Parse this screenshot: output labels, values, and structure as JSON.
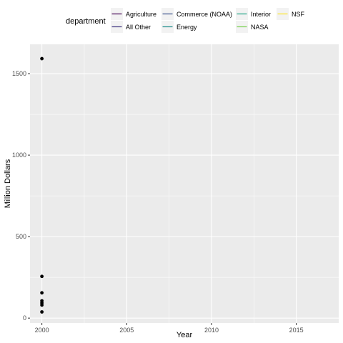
{
  "chart_data": {
    "type": "scatter",
    "title": "",
    "xlabel": "Year",
    "ylabel": "Million Dollars",
    "xlim": [
      1999.3,
      2017.5
    ],
    "ylim": [
      -30,
      1680
    ],
    "x_ticks": [
      2000,
      2005,
      2010,
      2015
    ],
    "x_minor": [
      2002.5,
      2007.5,
      2012.5
    ],
    "y_ticks": [
      0,
      500,
      1000,
      1500
    ],
    "y_minor": [
      250,
      750,
      1250
    ],
    "grid": true,
    "points": [
      {
        "x": 2000,
        "y": 1592
      },
      {
        "x": 2000,
        "y": 256
      },
      {
        "x": 2000,
        "y": 155
      },
      {
        "x": 2000,
        "y": 106
      },
      {
        "x": 2000,
        "y": 93
      },
      {
        "x": 2000,
        "y": 80
      },
      {
        "x": 2000,
        "y": 38
      }
    ],
    "point_color": "#000000",
    "legend": {
      "title": "department",
      "placement": "top",
      "entries": [
        {
          "name": "Agriculture",
          "color": "#440154"
        },
        {
          "name": "Commerce (NOAA)",
          "color": "#3B528B"
        },
        {
          "name": "Interior",
          "color": "#21A685"
        },
        {
          "name": "NSF",
          "color": "#FDE725"
        },
        {
          "name": "All Other",
          "color": "#443A83"
        },
        {
          "name": "Energy",
          "color": "#218F8D"
        },
        {
          "name": "NASA",
          "color": "#7AD151"
        }
      ]
    },
    "colors": {
      "panel": "#EBEBEB",
      "grid": "#FFFFFF",
      "legend_key": "#F2F2F2"
    }
  }
}
